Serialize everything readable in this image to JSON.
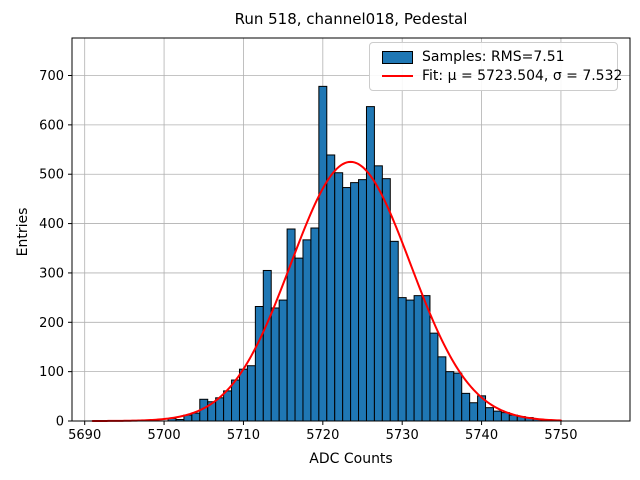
{
  "chart_data": {
    "type": "bar",
    "subtype": "histogram-with-gaussian-fit",
    "title": "Run 518, channel018, Pedestal",
    "xlabel": "ADC Counts",
    "ylabel": "Entries",
    "grid": true,
    "legend_position": "upper right",
    "xlim": [
      5688.4,
      5758.7
    ],
    "ylim": [
      0,
      776
    ],
    "x_ticks": [
      5690,
      5700,
      5710,
      5720,
      5730,
      5740,
      5750
    ],
    "y_ticks": [
      0,
      100,
      200,
      300,
      400,
      500,
      600,
      700
    ],
    "bin_width": 1,
    "bin_centers": [
      5701,
      5702,
      5703,
      5704,
      5705,
      5706,
      5707,
      5708,
      5709,
      5710,
      5711,
      5712,
      5713,
      5714,
      5715,
      5716,
      5717,
      5718,
      5719,
      5720,
      5721,
      5722,
      5723,
      5724,
      5725,
      5726,
      5727,
      5728,
      5729,
      5730,
      5731,
      5732,
      5733,
      5734,
      5735,
      5736,
      5737,
      5738,
      5739,
      5740,
      5741,
      5742,
      5743,
      5744,
      5745,
      5746,
      5747,
      5748
    ],
    "counts": [
      5,
      3,
      12,
      16,
      44,
      39,
      47,
      61,
      83,
      105,
      112,
      232,
      305,
      229,
      245,
      389,
      330,
      367,
      391,
      678,
      539,
      503,
      473,
      483,
      489,
      637,
      517,
      491,
      364,
      250,
      245,
      254,
      254,
      178,
      130,
      100,
      97,
      56,
      37,
      51,
      27,
      20,
      17,
      12,
      9,
      7,
      4,
      2
    ],
    "fit": {
      "mu": 5723.504,
      "sigma": 7.532,
      "amplitude": 525,
      "x_start": 5691,
      "x_end": 5750
    },
    "legend": [
      {
        "label": "Samples: RMS=7.51",
        "swatch": "patch",
        "color": "#1f77b4"
      },
      {
        "label": "Fit: μ = 5723.504, σ = 7.532",
        "swatch": "line",
        "color": "#ff0000"
      }
    ],
    "colors": {
      "bar_fill": "#1f77b4",
      "bar_edge": "#000000",
      "fit_line": "#ff0000",
      "grid": "#b0b0b0",
      "spine": "#000000",
      "background": "#ffffff"
    }
  }
}
